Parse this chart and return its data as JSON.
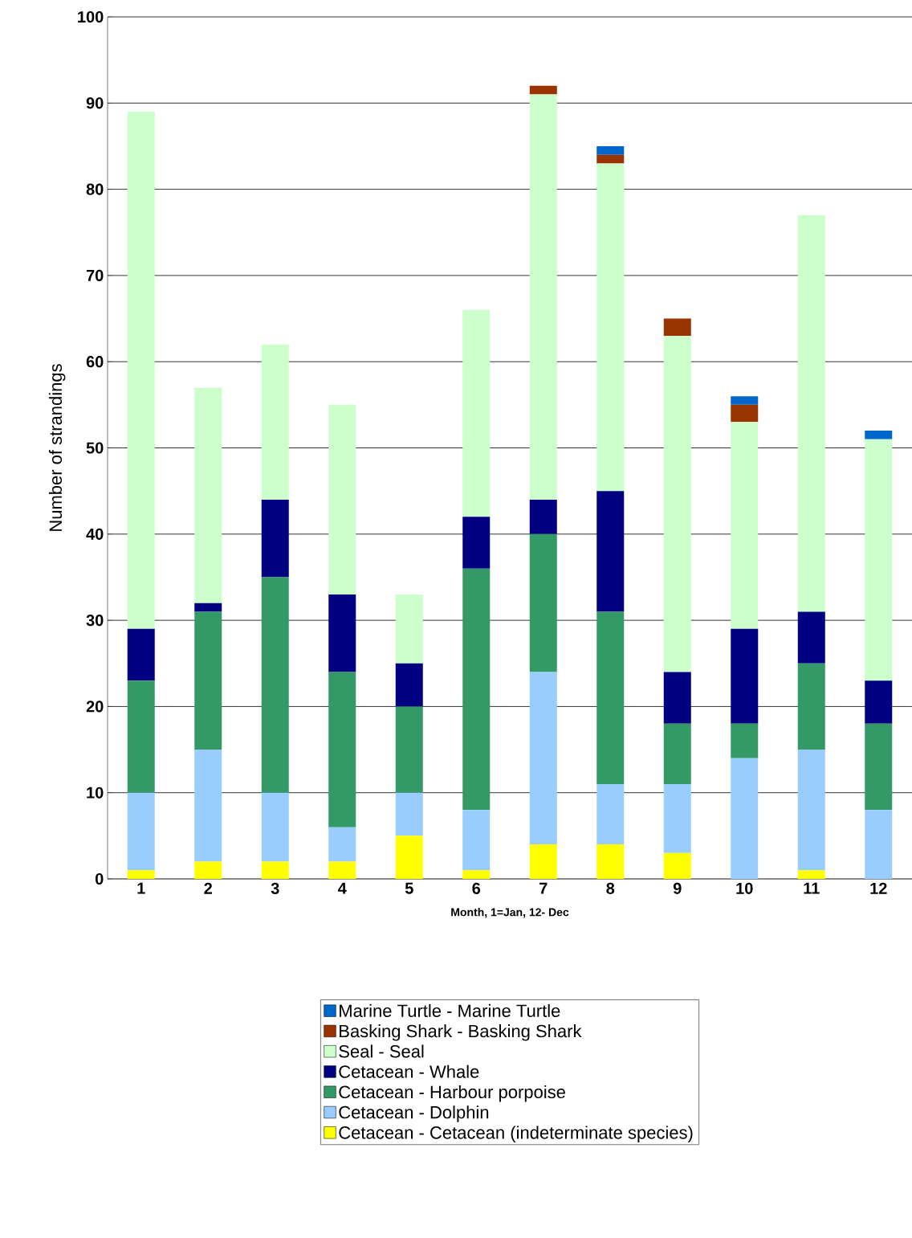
{
  "chart_data": {
    "type": "bar",
    "stacked": true,
    "xlabel": "Month, 1=Jan, 12- Dec",
    "ylabel": "Number of strandings",
    "categories": [
      "1",
      "2",
      "3",
      "4",
      "5",
      "6",
      "7",
      "8",
      "9",
      "10",
      "11",
      "12"
    ],
    "ylim": [
      0,
      100
    ],
    "yticks": [
      0,
      10,
      20,
      30,
      40,
      50,
      60,
      70,
      80,
      90,
      100
    ],
    "grid": "y",
    "legend": "bottom",
    "series": [
      {
        "name": "Cetacean - Cetacean (indeterminate species)",
        "color": "#ffff00",
        "values": [
          1,
          2,
          2,
          2,
          5,
          1,
          4,
          4,
          3,
          0,
          1,
          0
        ]
      },
      {
        "name": "Cetacean - Dolphin",
        "color": "#99ccff",
        "values": [
          9,
          13,
          8,
          4,
          5,
          7,
          20,
          7,
          8,
          14,
          14,
          8
        ]
      },
      {
        "name": "Cetacean - Harbour porpoise",
        "color": "#339966",
        "values": [
          13,
          16,
          25,
          18,
          10,
          28,
          16,
          20,
          7,
          4,
          10,
          10
        ]
      },
      {
        "name": "Cetacean - Whale",
        "color": "#000080",
        "values": [
          6,
          1,
          9,
          9,
          5,
          6,
          4,
          14,
          6,
          11,
          6,
          5
        ]
      },
      {
        "name": "Seal - Seal",
        "color": "#ccffcc",
        "values": [
          60,
          25,
          18,
          22,
          8,
          24,
          47,
          38,
          39,
          24,
          46,
          28
        ]
      },
      {
        "name": "Basking Shark - Basking Shark",
        "color": "#993300",
        "values": [
          0,
          0,
          0,
          0,
          0,
          0,
          1,
          1,
          2,
          2,
          0,
          0
        ]
      },
      {
        "name": "Marine Turtle - Marine Turtle",
        "color": "#0066cc",
        "values": [
          0,
          0,
          0,
          0,
          0,
          0,
          0,
          1,
          0,
          1,
          0,
          1
        ]
      }
    ]
  }
}
